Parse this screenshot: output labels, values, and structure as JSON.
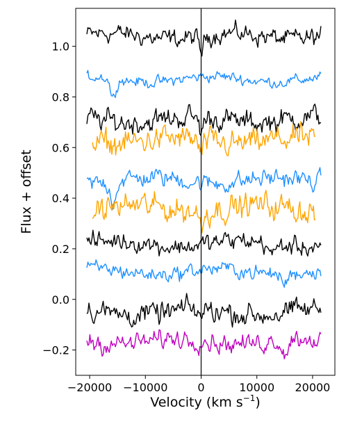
{
  "chart_data": {
    "type": "line",
    "xlabel": "Velocity (km s",
    "xlabel_sup": "−1",
    "xlabel_close": ")",
    "ylabel": "Flux + offset",
    "xlim": [
      -22500,
      24000
    ],
    "ylim": [
      -0.3,
      1.15
    ],
    "x_ticks": [
      -20000,
      -10000,
      0,
      10000,
      20000
    ],
    "x_tick_labels": [
      "−20000",
      "−10000",
      "0",
      "10000",
      "20000"
    ],
    "y_ticks": [
      -0.2,
      0.0,
      0.2,
      0.4,
      0.6,
      0.8,
      1.0
    ],
    "y_tick_labels": [
      "−0.2",
      "0.0",
      "0.2",
      "0.4",
      "0.6",
      "0.8",
      "1.0"
    ],
    "vertical_line_at": 0,
    "grid": false,
    "colors": {
      "black": "#000000",
      "blue": "#1e90ff",
      "orange": "#ffa500",
      "magenta": "#bf00bf"
    },
    "series": [
      {
        "color": "#000000",
        "x_range": [
          -20500,
          21500
        ],
        "level": 1.04,
        "noise": 0.025,
        "feature_velocity": 0,
        "feature_depth": 0.06
      },
      {
        "color": "#1e90ff",
        "x_range": [
          -20500,
          21500
        ],
        "level": 0.87,
        "noise": 0.015,
        "feature_velocity": -15800,
        "feature_depth": 0.08
      },
      {
        "color": "#000000",
        "x_range": [
          -20500,
          21500
        ],
        "level": 0.71,
        "noise": 0.03,
        "feature_velocity": 0,
        "feature_depth": 0.05
      },
      {
        "color": "#ffa500",
        "x_range": [
          -19500,
          20500
        ],
        "level": 0.625,
        "noise": 0.035,
        "feature_velocity": 0,
        "feature_depth": 0.05
      },
      {
        "color": "#1e90ff",
        "x_range": [
          -20500,
          21500
        ],
        "level": 0.47,
        "noise": 0.025,
        "feature_velocity": -15800,
        "feature_depth": 0.08
      },
      {
        "color": "#ffa500",
        "x_range": [
          -19500,
          20500
        ],
        "level": 0.36,
        "noise": 0.035,
        "feature_velocity": 0,
        "feature_depth": 0.05
      },
      {
        "color": "#000000",
        "x_range": [
          -20500,
          21500
        ],
        "level": 0.22,
        "noise": 0.025,
        "feature_velocity": 12800,
        "feature_depth": 0.05
      },
      {
        "color": "#1e90ff",
        "x_range": [
          -20500,
          21500
        ],
        "level": 0.11,
        "noise": 0.02,
        "feature_velocity": 15000,
        "feature_depth": 0.04
      },
      {
        "color": "#000000",
        "x_range": [
          -20500,
          21500
        ],
        "level": -0.05,
        "noise": 0.03,
        "feature_velocity": 0,
        "feature_depth": 0.03
      },
      {
        "color": "#bf00bf",
        "x_range": [
          -20500,
          21500
        ],
        "level": -0.165,
        "noise": 0.025,
        "feature_velocity": 15000,
        "feature_depth": 0.06
      }
    ]
  }
}
